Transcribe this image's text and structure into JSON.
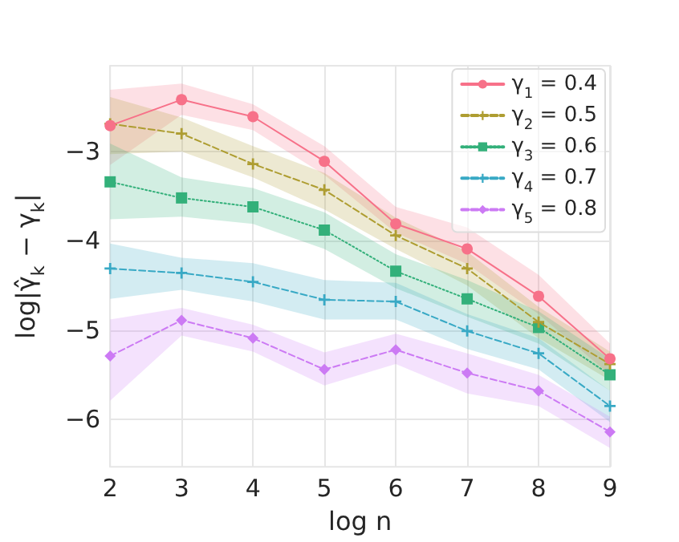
{
  "chart_data": {
    "type": "line",
    "xlabel": "log n",
    "ylabel": "log|γ̂$_{k}$ − γ$_{k}$|",
    "x": [
      2,
      3,
      4,
      5,
      6,
      7,
      8,
      9
    ],
    "xlim": [
      2,
      9
    ],
    "xticks": [
      2,
      3,
      4,
      5,
      6,
      7,
      8,
      9
    ],
    "ylim": [
      -6.53,
      -2.04
    ],
    "yticks": [
      -3,
      -4,
      -5,
      -6
    ],
    "grid": true,
    "legend": "top right",
    "series": [
      {
        "name": "γ$_{1}$ = 0.4",
        "color": "#f77189",
        "marker": "circle",
        "line_style": "solid",
        "values": [
          -2.71,
          -2.42,
          -2.61,
          -3.11,
          -3.81,
          -4.09,
          -4.62,
          -5.32
        ],
        "lower": [
          -3.15,
          -2.59,
          -2.76,
          -3.26,
          -3.91,
          -4.26,
          -4.82,
          -5.5
        ],
        "upper": [
          -2.31,
          -2.24,
          -2.47,
          -2.94,
          -3.62,
          -3.85,
          -4.38,
          -5.15
        ]
      },
      {
        "name": "γ$_{2}$ = 0.5",
        "color": "#ae9d31",
        "marker": "cross",
        "line_style": "dashed",
        "values": [
          -2.69,
          -2.8,
          -3.14,
          -3.43,
          -3.94,
          -4.31,
          -4.91,
          -5.38
        ],
        "lower": [
          -3.03,
          -3.0,
          -3.29,
          -3.65,
          -4.09,
          -4.5,
          -5.09,
          -5.56
        ],
        "upper": [
          -2.39,
          -2.62,
          -2.94,
          -3.24,
          -3.74,
          -4.12,
          -4.74,
          -5.24
        ]
      },
      {
        "name": "γ$_{3}$ = 0.6",
        "color": "#33b07a",
        "marker": "square",
        "line_style": "dotted",
        "values": [
          -3.34,
          -3.52,
          -3.62,
          -3.88,
          -4.34,
          -4.65,
          -4.97,
          -5.5
        ],
        "lower": [
          -3.76,
          -3.73,
          -3.81,
          -4.09,
          -4.53,
          -4.85,
          -5.15,
          -5.68
        ],
        "upper": [
          -2.91,
          -3.29,
          -3.41,
          -3.68,
          -4.15,
          -4.44,
          -4.79,
          -5.32
        ]
      },
      {
        "name": "γ$_{4}$ = 0.7",
        "color": "#38a9c5",
        "marker": "cross",
        "line_style": "dashed",
        "values": [
          -4.31,
          -4.36,
          -4.46,
          -4.66,
          -4.68,
          -5.01,
          -5.26,
          -5.85
        ],
        "lower": [
          -4.65,
          -4.55,
          -4.68,
          -4.88,
          -4.88,
          -5.21,
          -5.44,
          -6.03
        ],
        "upper": [
          -4.03,
          -4.19,
          -4.25,
          -4.44,
          -4.47,
          -4.82,
          -5.09,
          -5.68
        ]
      },
      {
        "name": "γ$_{5}$ = 0.8",
        "color": "#cc7af4",
        "marker": "diamond",
        "line_style": "dashed",
        "values": [
          -5.29,
          -4.89,
          -5.09,
          -5.44,
          -5.22,
          -5.48,
          -5.68,
          -6.14
        ],
        "lower": [
          -5.79,
          -5.06,
          -5.24,
          -5.62,
          -5.38,
          -5.71,
          -5.85,
          -6.32
        ],
        "upper": [
          -4.88,
          -4.75,
          -4.94,
          -5.25,
          -5.04,
          -5.26,
          -5.5,
          -5.97
        ]
      }
    ]
  }
}
